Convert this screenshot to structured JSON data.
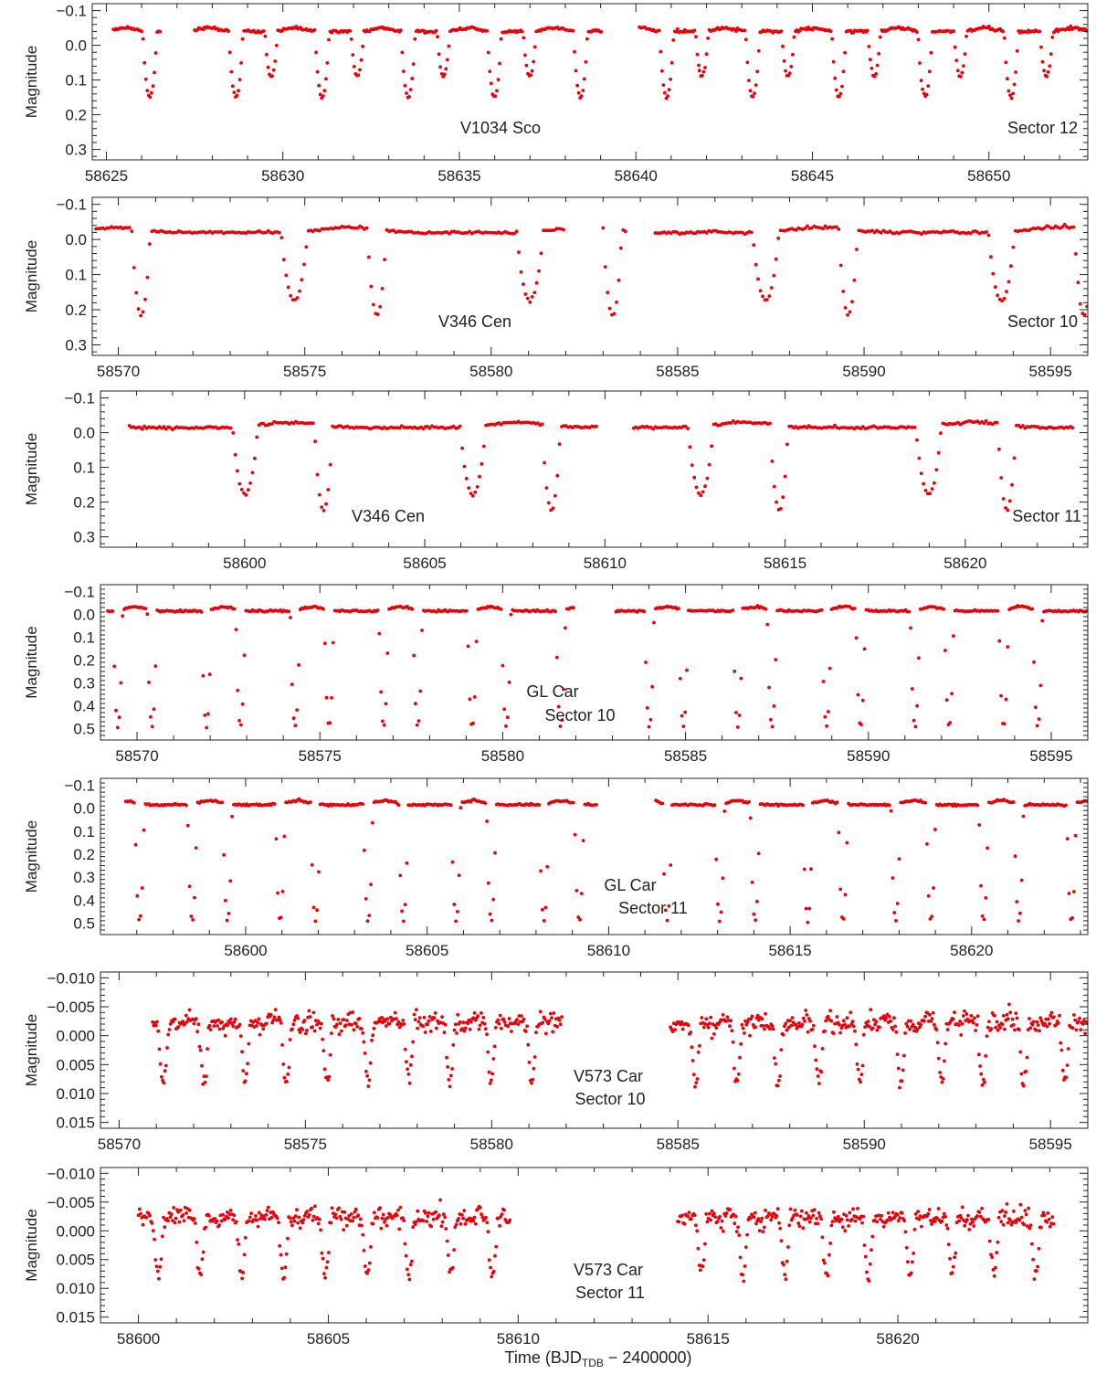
{
  "figure": {
    "xlabel_prefix": "Time (BJD",
    "xlabel_sub": "TDB",
    "xlabel_suffix": " − 2400000)",
    "ylabel": "Magnitude",
    "point_color": "#e8000b",
    "axis_color": "#222222"
  },
  "chart_data": [
    {
      "type": "scatter",
      "star": "V1034 Sco",
      "sector": "Sector 12",
      "xlim": [
        58624.6,
        58652.8
      ],
      "ylim_inverted": [
        0.33,
        -0.12
      ],
      "yticks": [
        -0.1,
        0.0,
        0.1,
        0.2,
        0.3
      ],
      "ytick_labels": [
        "−0.1",
        "0.0",
        "0.1",
        "0.2",
        "0.3"
      ],
      "xticks": [
        58625,
        58630,
        58635,
        58640,
        58645,
        58650
      ],
      "ytick_minor_step": 0.02,
      "xtick_minor_step": 1,
      "model": {
        "kind": "eclipsing",
        "baseline": -0.04,
        "period": 2.44,
        "primary_epoch": 58626.23,
        "primary_depth": 0.19,
        "primary_halfwidth": 0.2,
        "secondary_epoch": 58627.23,
        "secondary_depth": 0.13,
        "secondary_halfwidth": 0.18,
        "hump_amp": 0.01,
        "hump_phase_center": 0.7,
        "noise": 0.002,
        "cadence": 0.04,
        "segments": [
          [
            58625.2,
            58626.55
          ],
          [
            58627.5,
            58639.05
          ],
          [
            58640.1,
            58641.8
          ],
          [
            58641.8,
            58652.8
          ]
        ],
        "gaps_note": ""
      },
      "label_pos": "bottom-right"
    },
    {
      "type": "scatter",
      "star": "V346 Cen",
      "sector": "Sector 10",
      "xlim": [
        58569.3,
        58596.0
      ],
      "ylim_inverted": [
        0.33,
        -0.12
      ],
      "yticks": [
        -0.1,
        0.0,
        0.1,
        0.2,
        0.3
      ],
      "ytick_labels": [
        "−0.1",
        "0.0",
        "0.1",
        "0.2",
        "0.3"
      ],
      "xticks": [
        58570,
        58575,
        58580,
        58585,
        58590,
        58595
      ],
      "ytick_minor_step": 0.02,
      "xtick_minor_step": 1,
      "model": {
        "kind": "eclipsing",
        "baseline": -0.02,
        "period": 6.322,
        "primary_epoch": 58574.72,
        "primary_depth": 0.195,
        "primary_halfwidth": 0.35,
        "secondary_epoch": 58576.93,
        "secondary_depth": 0.245,
        "secondary_halfwidth": 0.25,
        "hump_amp": 0.015,
        "hump_phase_center": 0.24,
        "noise": 0.002,
        "cadence": 0.06,
        "segments": [
          [
            58569.4,
            58581.95
          ],
          [
            58583.0,
            58583.6
          ],
          [
            58584.4,
            58596.0
          ]
        ]
      },
      "label_pos": "bottom-right"
    },
    {
      "type": "scatter",
      "star": "V346 Cen",
      "sector": "Sector 11",
      "xlim": [
        58596.0,
        58623.4
      ],
      "ylim_inverted": [
        0.33,
        -0.12
      ],
      "yticks": [
        -0.1,
        0.0,
        0.1,
        0.2,
        0.3
      ],
      "ytick_labels": [
        "−0.1",
        "0.0",
        "0.1",
        "0.2",
        "0.3"
      ],
      "xticks": [
        58600,
        58605,
        58610,
        58615,
        58620
      ],
      "ytick_minor_step": 0.02,
      "xtick_minor_step": 1,
      "model": {
        "kind": "eclipsing",
        "baseline": -0.015,
        "period": 6.322,
        "primary_epoch": 58606.34,
        "primary_depth": 0.195,
        "primary_halfwidth": 0.35,
        "secondary_epoch": 58602.19,
        "secondary_depth": 0.245,
        "secondary_halfwidth": 0.25,
        "hump_amp": 0.015,
        "hump_phase_center": 0.2,
        "noise": 0.002,
        "cadence": 0.06,
        "segments": [
          [
            58596.8,
            58609.8
          ],
          [
            58610.8,
            58623.0
          ]
        ]
      },
      "label_pos": "bottom-right"
    },
    {
      "type": "scatter",
      "star": "GL Car",
      "sector": "Sector 10",
      "xlim": [
        58569.0,
        58596.0
      ],
      "ylim_inverted": [
        0.55,
        -0.13
      ],
      "yticks": [
        -0.1,
        0.0,
        0.1,
        0.2,
        0.3,
        0.4,
        0.5
      ],
      "ytick_labels": [
        "−0.1",
        "0.0",
        "0.1",
        "0.2",
        "0.3",
        "0.4",
        "0.5"
      ],
      "xticks": [
        58570,
        58575,
        58580,
        58585,
        58590,
        58595
      ],
      "ytick_minor_step": 0.02,
      "xtick_minor_step": 1,
      "model": {
        "kind": "eclipsing",
        "baseline": -0.015,
        "period": 2.4222,
        "primary_epoch": 58571.9,
        "primary_depth": 0.51,
        "primary_halfwidth": 0.13,
        "secondary_epoch": 58572.83,
        "secondary_depth": 0.51,
        "secondary_halfwidth": 0.13,
        "hump_amp": 0.018,
        "hump_phase_center": 0.2,
        "noise": 0.002,
        "cadence": 0.045,
        "segments": [
          [
            58569.2,
            58581.95
          ],
          [
            58583.1,
            58596.0
          ]
        ]
      },
      "label_pos": "center"
    },
    {
      "type": "scatter",
      "star": "GL Car",
      "sector": "Sector 11",
      "xlim": [
        58596.0,
        58623.2
      ],
      "ylim_inverted": [
        0.55,
        -0.13
      ],
      "yticks": [
        -0.1,
        0.0,
        0.1,
        0.2,
        0.3,
        0.4,
        0.5
      ],
      "ytick_labels": [
        "−0.1",
        "0.0",
        "0.1",
        "0.2",
        "0.3",
        "0.4",
        "0.5"
      ],
      "xticks": [
        58600,
        58605,
        58610,
        58615,
        58620
      ],
      "ytick_minor_step": 0.02,
      "xtick_minor_step": 1,
      "model": {
        "kind": "eclipsing",
        "baseline": -0.015,
        "period": 2.4222,
        "primary_epoch": 58598.53,
        "primary_depth": 0.51,
        "primary_halfwidth": 0.13,
        "secondary_epoch": 58599.5,
        "secondary_depth": 0.51,
        "secondary_halfwidth": 0.13,
        "hump_amp": 0.018,
        "hump_phase_center": 0.2,
        "noise": 0.002,
        "cadence": 0.045,
        "segments": [
          [
            58596.7,
            58609.7
          ],
          [
            58611.3,
            58623.2
          ]
        ]
      },
      "label_pos": "center"
    },
    {
      "type": "scatter",
      "star": "V573 Car",
      "sector": "Sector 10",
      "xlim": [
        58569.5,
        58596.0
      ],
      "ylim_inverted": [
        0.016,
        -0.011
      ],
      "yticks": [
        -0.01,
        -0.005,
        0.0,
        0.005,
        0.01,
        0.015
      ],
      "ytick_labels": [
        "−0.010",
        "−0.005",
        "0.000",
        "0.005",
        "0.010",
        "0.015"
      ],
      "xticks": [
        58570,
        58575,
        58580,
        58585,
        58590,
        58595
      ],
      "ytick_minor_step": 0.001,
      "xtick_minor_step": 1,
      "model": {
        "kind": "ellipsoidal",
        "baseline": -0.0015,
        "period": 1.1,
        "primary_epoch": 58571.18,
        "primary_depth": 0.0085,
        "primary_halfwidth": 0.13,
        "hump_amp": 0.0015,
        "hump_phase_center": 0.55,
        "noise": 0.0008,
        "cadence": 0.03,
        "segments": [
          [
            58570.9,
            58581.9
          ],
          [
            58584.8,
            58596.0
          ]
        ]
      },
      "label_pos": "center"
    },
    {
      "type": "scatter",
      "star": "V573 Car",
      "sector": "Sector 11",
      "xlim": [
        58599.0,
        58625.0
      ],
      "ylim_inverted": [
        0.016,
        -0.011
      ],
      "yticks": [
        -0.01,
        -0.005,
        0.0,
        0.005,
        0.01,
        0.015
      ],
      "ytick_labels": [
        "−0.010",
        "−0.005",
        "0.000",
        "0.005",
        "0.010",
        "0.015"
      ],
      "xticks": [
        58600,
        58605,
        58610,
        58615,
        58620
      ],
      "ytick_minor_step": 0.001,
      "xtick_minor_step": 1,
      "model": {
        "kind": "ellipsoidal",
        "baseline": -0.0015,
        "period": 1.1,
        "primary_epoch": 58600.52,
        "primary_depth": 0.0085,
        "primary_halfwidth": 0.13,
        "hump_amp": 0.0015,
        "hump_phase_center": 0.55,
        "noise": 0.0008,
        "cadence": 0.03,
        "segments": [
          [
            58600.0,
            58609.8
          ],
          [
            58614.2,
            58624.1
          ]
        ]
      },
      "label_pos": "center"
    }
  ]
}
